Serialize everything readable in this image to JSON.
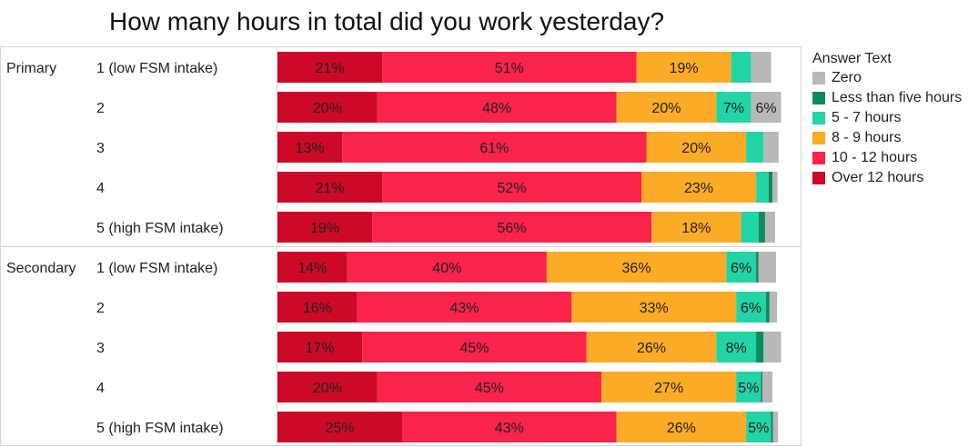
{
  "chart_data": {
    "type": "bar",
    "orientation": "horizontal",
    "stacked": "percent",
    "title": "How many hours in total did you work yesterday?",
    "legend_title": "Answer Text",
    "legend_position": "right",
    "groups": [
      "Primary",
      "Secondary"
    ],
    "categories": [
      "1 (low FSM intake)",
      "2",
      "3",
      "4",
      "5 (high FSM intake)",
      "1 (low FSM intake)",
      "2",
      "3",
      "4",
      "5 (high FSM intake)"
    ],
    "stack_order": [
      "Over 12 hours",
      "10 - 12 hours",
      "8 - 9 hours",
      "5 - 7 hours",
      "Less than five hours",
      "Zero"
    ],
    "series": [
      {
        "name": "Zero",
        "color": "#b8b8b8",
        "values": [
          4,
          6,
          3,
          1,
          2,
          3.5,
          1.5,
          3.5,
          2,
          1
        ],
        "labels": [
          "",
          "6%",
          "",
          "",
          "",
          "",
          "",
          "",
          "",
          ""
        ]
      },
      {
        "name": "Less than five hours",
        "color": "#0e8a5f",
        "values": [
          0,
          0,
          0,
          0.8,
          1.3,
          0.5,
          0.7,
          1.5,
          0.3,
          0.4
        ],
        "labels": [
          "",
          "",
          "",
          "",
          "",
          "",
          "",
          "",
          "",
          ""
        ]
      },
      {
        "name": "5 - 7 hours",
        "color": "#22d4a6",
        "values": [
          4,
          7,
          3.5,
          2.5,
          3.5,
          6,
          6,
          8,
          5,
          5
        ],
        "labels": [
          "",
          "7%",
          "",
          "",
          "",
          "6%",
          "6%",
          "8%",
          "5%",
          "5%"
        ]
      },
      {
        "name": "8 - 9 hours",
        "color": "#fbab25",
        "values": [
          19,
          20,
          20,
          23,
          18,
          36,
          33,
          26,
          27,
          26
        ],
        "labels": [
          "19%",
          "20%",
          "20%",
          "23%",
          "18%",
          "36%",
          "33%",
          "26%",
          "27%",
          "26%"
        ]
      },
      {
        "name": "10 - 12 hours",
        "color": "#f9234b",
        "values": [
          51,
          48,
          61,
          52,
          56,
          40,
          43,
          45,
          45,
          43
        ],
        "labels": [
          "51%",
          "48%",
          "61%",
          "52%",
          "56%",
          "40%",
          "43%",
          "45%",
          "45%",
          "43%"
        ]
      },
      {
        "name": "Over 12 hours",
        "color": "#cc0a28",
        "values": [
          21,
          20,
          13,
          21,
          19,
          14,
          16,
          17,
          20,
          25
        ],
        "labels": [
          "21%",
          "20%",
          "13%",
          "21%",
          "19%",
          "14%",
          "16%",
          "17%",
          "20%",
          "25%"
        ]
      }
    ],
    "xlim": [
      0,
      100
    ],
    "grid": false
  }
}
